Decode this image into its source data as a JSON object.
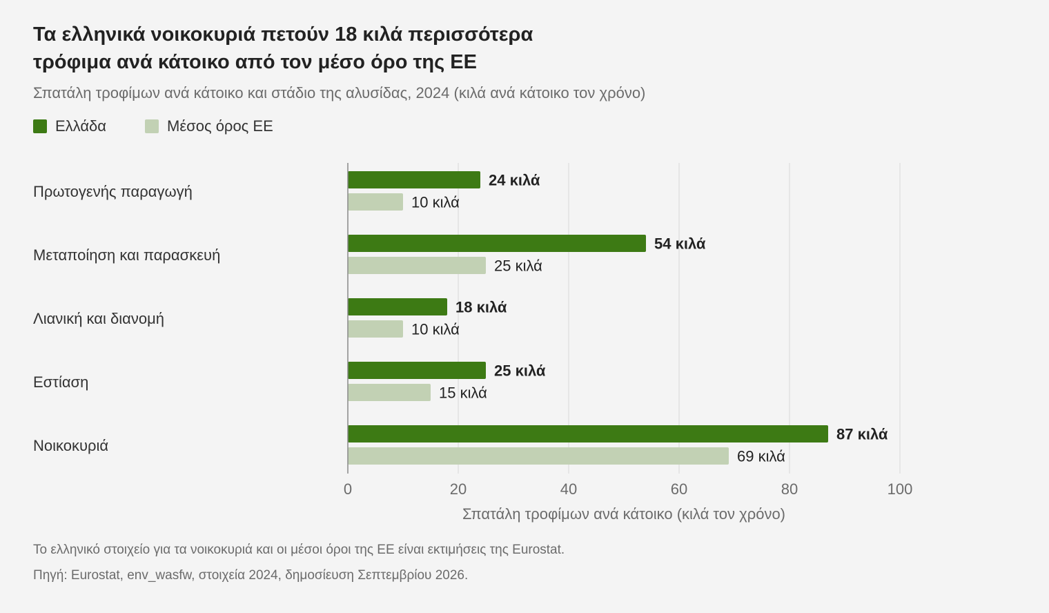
{
  "header": {
    "title_line1": "Τα ελληνικά νοικοκυριά πετούν 18 κιλά περισσότερα",
    "title_line2": "τρόφιμα ανά κάτοικο από τον μέσο όρο της ΕΕ",
    "subtitle": "Σπατάλη τροφίμων ανά κάτοικο και στάδιο της αλυσίδας, 2024 (κιλά ανά κάτοικο τον χρόνο)"
  },
  "legend": {
    "greece": "Ελλάδα",
    "eu": "Μέσος όρος ΕΕ"
  },
  "colors": {
    "greece": "#3d7a14",
    "eu": "#c2d1b4",
    "grid": "#e2e2e2",
    "axis": "#888888"
  },
  "chart_data": {
    "type": "bar",
    "orientation": "horizontal",
    "categories": [
      "Πρωτογενής παραγωγή",
      "Μεταποίηση και παρασκευή",
      "Λιανική και διανομή",
      "Εστίαση",
      "Νοικοκυριά"
    ],
    "series": [
      {
        "name": "Ελλάδα",
        "values": [
          24,
          54,
          18,
          25,
          87
        ],
        "labels": [
          "24 κιλά",
          "54 κιλά",
          "18 κιλά",
          "25 κιλά",
          "87 κιλά"
        ]
      },
      {
        "name": "Μέσος όρος ΕΕ",
        "values": [
          10,
          25,
          10,
          15,
          69
        ],
        "labels": [
          "10 κιλά",
          "25 κιλά",
          "10 κιλά",
          "15 κιλά",
          "69 κιλά"
        ]
      }
    ],
    "xlim": [
      0,
      100
    ],
    "xticks": [
      0,
      20,
      40,
      60,
      80,
      100
    ],
    "xtick_labels": [
      "0",
      "20",
      "40",
      "60",
      "80",
      "100"
    ],
    "xlabel": "Σπατάλη τροφίμων ανά κάτοικο (κιλά τον χρόνο)",
    "grid": true,
    "legend_position": "top-left"
  },
  "footnotes": {
    "note": "Το ελληνικό στοιχείο για τα νοικοκυριά και οι μέσοι όροι της ΕΕ είναι εκτιμήσεις της Eurostat.",
    "source": "Πηγή: Eurostat, env_wasfw, στοιχεία 2024, δημοσίευση Σεπτεμβρίου 2026."
  }
}
